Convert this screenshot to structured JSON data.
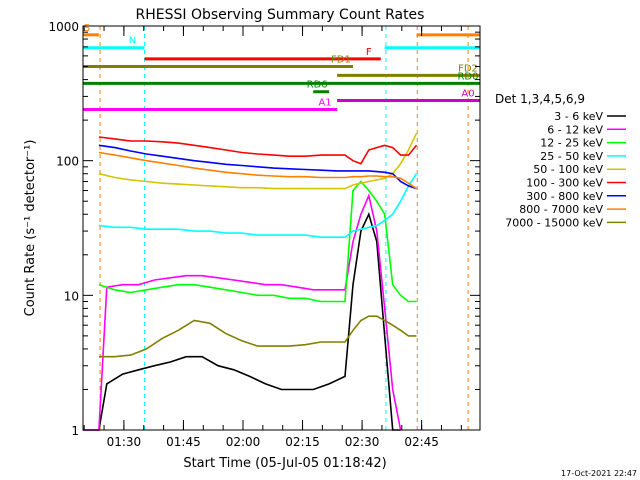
{
  "chart_data": {
    "type": "line",
    "title": "RHESSI Observing Summary Count Rates",
    "xlabel": "Start Time (05-Jul-05 01:18:42)",
    "ylabel": "Count Rate (s⁻¹ detector⁻¹)",
    "x_units": "minutes since 01:18:42",
    "xlim": [
      0,
      100
    ],
    "ylim": [
      1,
      1000
    ],
    "yscale": "log",
    "grid": false,
    "x_ticks": [
      {
        "value": 10.3,
        "label": "01:30"
      },
      {
        "value": 25.3,
        "label": "01:45"
      },
      {
        "value": 40.3,
        "label": "02:00"
      },
      {
        "value": 55.3,
        "label": "02:15"
      },
      {
        "value": 70.3,
        "label": "02:30"
      },
      {
        "value": 85.3,
        "label": "02:45"
      }
    ],
    "y_ticks": [
      {
        "value": 1,
        "label": "1"
      },
      {
        "value": 10,
        "label": "10"
      },
      {
        "value": 100,
        "label": "100"
      },
      {
        "value": 1000,
        "label": "1000"
      }
    ],
    "legend": {
      "title": "Det 1,3,4,5,6,9",
      "placement": "right"
    },
    "series": [
      {
        "name": "3 - 6 keV",
        "color": "#000000",
        "x": [
          0,
          4,
          6,
          10,
          14,
          18,
          22,
          26,
          30,
          34,
          38,
          42,
          46,
          50,
          54,
          58,
          62,
          66,
          68,
          70,
          72,
          74,
          76,
          78,
          80
        ],
        "y": [
          1,
          1,
          2.2,
          2.6,
          2.8,
          3,
          3.2,
          3.5,
          3.5,
          3,
          2.8,
          2.5,
          2.2,
          2,
          2,
          2,
          2.2,
          2.5,
          12,
          30,
          40,
          25,
          5,
          1,
          1
        ]
      },
      {
        "name": "6 - 12 keV",
        "color": "#ff00ff",
        "x": [
          0,
          4,
          6,
          10,
          14,
          18,
          22,
          26,
          30,
          34,
          38,
          42,
          46,
          50,
          54,
          58,
          62,
          66,
          68,
          70,
          72,
          74,
          76,
          78,
          80
        ],
        "y": [
          1,
          1,
          11.5,
          12,
          12,
          13,
          13.5,
          14,
          14,
          13.5,
          13,
          12.5,
          12,
          12,
          11.5,
          11,
          11,
          11,
          25,
          40,
          55,
          30,
          8,
          2,
          1
        ]
      },
      {
        "name": "12 - 25 keV",
        "color": "#00ff00",
        "x": [
          4,
          8,
          12,
          16,
          20,
          24,
          28,
          32,
          36,
          40,
          44,
          48,
          52,
          56,
          60,
          64,
          66,
          68,
          70,
          72,
          74,
          76,
          78,
          80,
          82,
          84
        ],
        "y": [
          12,
          11,
          10.5,
          11,
          11.5,
          12,
          12,
          11.5,
          11,
          10.5,
          10,
          10,
          9.5,
          9.5,
          9,
          9,
          9,
          60,
          70,
          60,
          50,
          40,
          12,
          10,
          9,
          9
        ]
      },
      {
        "name": "25 - 50 keV",
        "color": "#00ffff",
        "x": [
          4,
          8,
          12,
          16,
          20,
          24,
          28,
          32,
          36,
          40,
          44,
          48,
          52,
          56,
          60,
          64,
          66,
          68,
          70,
          72,
          74,
          76,
          78,
          80,
          82,
          84
        ],
        "y": [
          33,
          32,
          32,
          31,
          31,
          31,
          30,
          30,
          29,
          29,
          28,
          28,
          28,
          28,
          27,
          27,
          27,
          30,
          31,
          32,
          33,
          36,
          40,
          50,
          65,
          80
        ]
      },
      {
        "name": "50 - 100 keV",
        "color": "#d4c400",
        "x": [
          4,
          8,
          12,
          16,
          20,
          24,
          28,
          32,
          36,
          40,
          44,
          48,
          52,
          56,
          60,
          64,
          66,
          68,
          70,
          72,
          74,
          76,
          78,
          80,
          82,
          84
        ],
        "y": [
          80,
          75,
          72,
          70,
          68,
          67,
          66,
          65,
          64,
          63,
          63,
          62,
          62,
          62,
          62,
          62,
          62,
          66,
          68,
          70,
          72,
          74,
          80,
          95,
          120,
          160
        ]
      },
      {
        "name": "100 - 300 keV",
        "color": "#ff0000",
        "x": [
          4,
          8,
          12,
          16,
          20,
          24,
          28,
          32,
          36,
          40,
          44,
          48,
          52,
          56,
          60,
          64,
          66,
          68,
          70,
          72,
          74,
          76,
          78,
          80,
          82,
          84
        ],
        "y": [
          150,
          145,
          140,
          140,
          138,
          135,
          130,
          125,
          120,
          115,
          112,
          110,
          108,
          108,
          110,
          110,
          110,
          100,
          95,
          120,
          125,
          130,
          125,
          110,
          110,
          130
        ]
      },
      {
        "name": "300 - 800 keV",
        "color": "#0000ff",
        "x": [
          4,
          8,
          12,
          16,
          20,
          24,
          28,
          32,
          36,
          40,
          44,
          48,
          52,
          56,
          60,
          64,
          66,
          68,
          70,
          72,
          74,
          76,
          78,
          80,
          82,
          84
        ],
        "y": [
          130,
          125,
          118,
          112,
          108,
          104,
          100,
          97,
          94,
          92,
          90,
          88,
          87,
          86,
          85,
          84,
          84,
          84,
          84,
          84,
          83,
          82,
          80,
          70,
          65,
          62
        ]
      },
      {
        "name": "800 - 7000 keV",
        "color": "#ff8000",
        "x": [
          4,
          8,
          12,
          16,
          20,
          24,
          28,
          32,
          36,
          40,
          44,
          48,
          52,
          56,
          60,
          64,
          66,
          68,
          70,
          72,
          74,
          76,
          78,
          80,
          82,
          84
        ],
        "y": [
          115,
          110,
          105,
          100,
          96,
          92,
          88,
          85,
          82,
          80,
          78,
          77,
          76,
          76,
          75,
          75,
          75,
          76,
          76,
          77,
          77,
          76,
          76,
          74,
          68,
          62
        ]
      },
      {
        "name": "7000 - 15000 keV",
        "color": "#808000",
        "x": [
          4,
          8,
          12,
          16,
          20,
          24,
          28,
          32,
          36,
          40,
          44,
          48,
          52,
          56,
          60,
          64,
          66,
          68,
          70,
          72,
          74,
          76,
          78,
          80,
          82,
          84
        ],
        "y": [
          3.5,
          3.5,
          3.6,
          4,
          4.8,
          5.5,
          6.5,
          6.2,
          5.2,
          4.6,
          4.2,
          4.2,
          4.2,
          4.3,
          4.5,
          4.5,
          4.5,
          5.5,
          6.5,
          7,
          7,
          6.5,
          6,
          5.5,
          5,
          5
        ]
      }
    ],
    "flags": [
      {
        "label": "S",
        "color": "#ff8000",
        "level": 860,
        "segments": [
          [
            0,
            4
          ],
          [
            84,
            100
          ]
        ]
      },
      {
        "label": "N",
        "color": "#00ffff",
        "level": 690,
        "segments": [
          [
            0,
            15.5
          ],
          [
            76,
            100
          ]
        ]
      },
      {
        "label": "F",
        "color": "#ff0000",
        "level": 570,
        "segments": [
          [
            15.5,
            75
          ]
        ]
      },
      {
        "label": "FD1",
        "color": "#808000",
        "level": 500,
        "segments": [
          [
            0,
            68
          ]
        ]
      },
      {
        "label": "FD2",
        "color": "#808000",
        "level": 430,
        "segments": [
          [
            64,
            100
          ]
        ]
      },
      {
        "label": "RD0",
        "color": "#008000",
        "level": 375,
        "segments": [
          [
            0,
            100
          ]
        ]
      },
      {
        "label": "RD6",
        "color": "#008000",
        "level": 325,
        "segments": [
          [
            58,
            62
          ]
        ]
      },
      {
        "label": "A0",
        "color": "#cc00cc",
        "level": 280,
        "segments": [
          [
            64,
            100
          ]
        ]
      },
      {
        "label": "A1",
        "color": "#ff00ff",
        "level": 240,
        "segments": [
          [
            0,
            64
          ]
        ]
      }
    ],
    "vertical_markers": [
      {
        "x": 4.3,
        "color": "#ff8000"
      },
      {
        "x": 15.5,
        "color": "#00ffff"
      },
      {
        "x": 76.3,
        "color": "#00ffff"
      },
      {
        "x": 84.2,
        "color": "#ff8000"
      },
      {
        "x": 97.0,
        "color": "#ff8000"
      }
    ],
    "footer_date": "17-Oct-2021 22:47"
  }
}
